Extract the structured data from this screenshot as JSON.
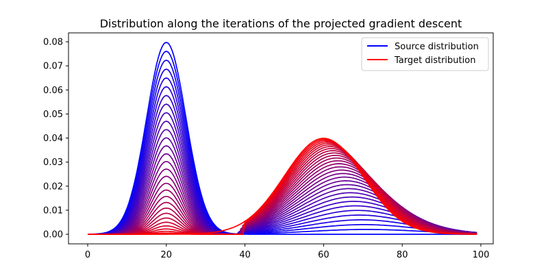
{
  "chart_data": {
    "type": "line",
    "title": "Distribution along the iterations of the projected gradient descent",
    "xlabel": "",
    "ylabel": "",
    "xlim": [
      -5,
      104
    ],
    "ylim": [
      -0.004,
      0.084
    ],
    "xticks": [
      0,
      20,
      40,
      60,
      80,
      100
    ],
    "xtick_labels": [
      "0",
      "20",
      "40",
      "60",
      "80",
      "100"
    ],
    "yticks": [
      0.0,
      0.01,
      0.02,
      0.03,
      0.04,
      0.05,
      0.06,
      0.07,
      0.08
    ],
    "ytick_labels": [
      "0.00",
      "0.01",
      "0.02",
      "0.03",
      "0.04",
      "0.05",
      "0.06",
      "0.07",
      "0.08"
    ],
    "grid": false,
    "legend_position": "upper right",
    "legend": [
      {
        "label": "Source distribution",
        "color": "#0000ff"
      },
      {
        "label": "Target distribution",
        "color": "#ff0000"
      }
    ],
    "x_domain": [
      0,
      99
    ],
    "source_distribution": {
      "type": "gaussian",
      "mean": 20,
      "std": 5,
      "peak": 0.0798
    },
    "target_distribution": {
      "type": "gaussian",
      "mean": 60,
      "std": 10,
      "peak": 0.0399
    },
    "iterations": {
      "description": "Curves interpolate from source (blue) to target (red) over iterations; color fades blue to red",
      "count": 30,
      "source_peak_sequence": [
        0.0798,
        0.0768,
        0.062,
        0.05,
        0.041,
        0.033,
        0.026,
        0.02,
        0.015,
        0.011,
        0.008,
        0.006,
        0.004,
        0.003,
        0.002,
        0.001
      ],
      "right_peak_sequence": [
        0.001,
        0.008,
        0.013,
        0.017,
        0.02,
        0.022,
        0.024,
        0.026,
        0.027,
        0.028,
        0.029,
        0.03,
        0.031,
        0.032,
        0.033,
        0.034,
        0.035,
        0.036,
        0.037,
        0.038,
        0.0385,
        0.039,
        0.0395,
        0.0399
      ]
    }
  },
  "colors": {
    "source": "#0000ff",
    "target": "#ff0000",
    "axes": "#000000",
    "background": "#ffffff"
  }
}
